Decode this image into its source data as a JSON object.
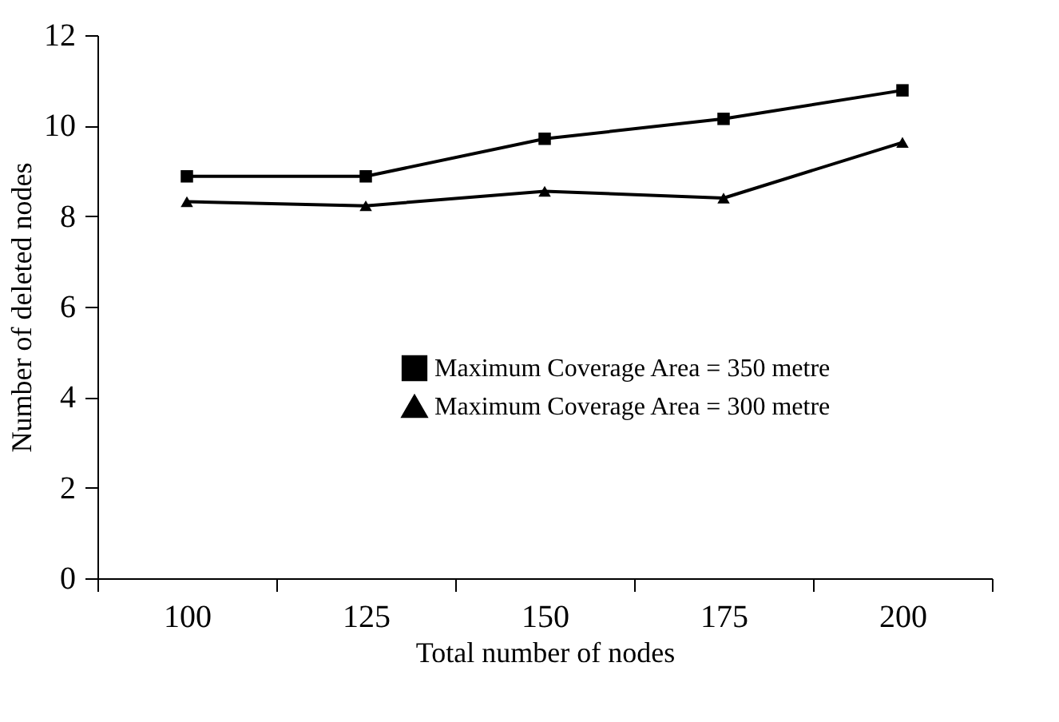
{
  "chart_data": {
    "type": "line",
    "xlabel": "Total number of nodes",
    "ylabel": "Number of deleted nodes",
    "categories": [
      "100",
      "125",
      "150",
      "175",
      "200"
    ],
    "series": [
      {
        "name": "Maximum Coverage Area = 350 metre",
        "color": "#000000",
        "marker": "square",
        "values": [
          8.88,
          8.88,
          9.71,
          10.15,
          10.78
        ]
      },
      {
        "name": "Maximum Coverage Area = 300 metre",
        "color": "#000000",
        "marker": "triangle",
        "values": [
          8.32,
          8.23,
          8.55,
          8.4,
          9.63
        ]
      }
    ],
    "ylim": [
      0,
      12
    ],
    "yticks": [
      0,
      2,
      4,
      6,
      8,
      10,
      12
    ],
    "grid": false,
    "legend": "right",
    "line_style": "solid"
  }
}
